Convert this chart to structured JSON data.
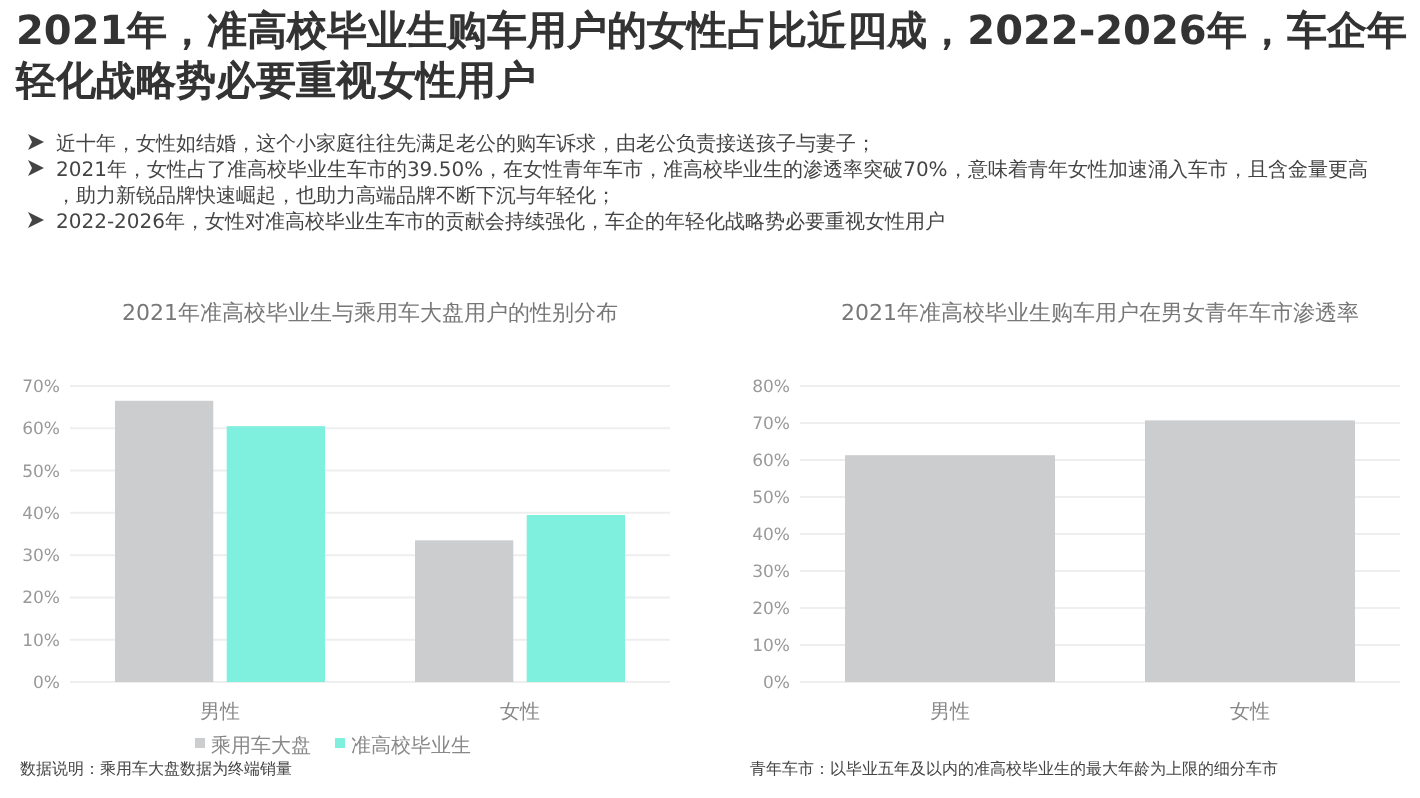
{
  "chart_data": [
    {
      "type": "other",
      "title": "2021年，准高校毕业生购车用户的女性占比近四成，2022-2026年，车企年轻化战略势必要重视女性用户",
      "annotations": [
        "近十年，女性如结婚，这个小家庭往往先满足老公的购车诉求，由老公负责接送孩子与妻子；",
        "2021年，女性占了准高校毕业生车市的39.50%，在女性青年车市，准高校毕业生的渗透率突破70%，意味着青年女性加速涌入车市，且含金量更高，助力新锐品牌快速崛起，也助力高端品牌不断下沉与年轻化；",
        "2022-2026年，女性对准高校毕业生车市的贡献会持续强化，车企的年轻化战略势必要重视女性用户"
      ]
    },
    {
      "type": "bar",
      "title": "2021年准高校毕业生与乘用车大盘用户的性别分布",
      "categories": [
        "男性",
        "女性"
      ],
      "series": [
        {
          "name": "乘用车大盘",
          "color": "#cbcdcf",
          "values": [
            66.5,
            33.5
          ]
        },
        {
          "name": "准高校毕业生",
          "color": "#80f0de",
          "values": [
            60.5,
            39.5
          ]
        }
      ],
      "ylim": [
        0,
        70
      ],
      "yticks": [
        {
          "value": 0,
          "label": "0%"
        },
        {
          "value": 10,
          "label": "10%"
        },
        {
          "value": 20,
          "label": "20%"
        },
        {
          "value": 30,
          "label": "30%"
        },
        {
          "value": 40,
          "label": "40%"
        },
        {
          "value": 50,
          "label": "50%"
        },
        {
          "value": 60,
          "label": "60%"
        },
        {
          "value": 70,
          "label": "70%"
        }
      ],
      "grid": "y",
      "legend": "bottom",
      "annotations": [
        "数据说明：乘用车大盘数据为终端销量"
      ]
    },
    {
      "type": "bar",
      "title": "2021年准高校毕业生购车用户在男女青年车市渗透率",
      "categories": [
        "男性",
        "女性"
      ],
      "series": [
        {
          "color": "#cbcdcf",
          "values": [
            61.3,
            70.7
          ]
        }
      ],
      "ylim": [
        0,
        80
      ],
      "yticks": [
        {
          "value": 0,
          "label": "0%"
        },
        {
          "value": 10,
          "label": "10%"
        },
        {
          "value": 20,
          "label": "20%"
        },
        {
          "value": 30,
          "label": "30%"
        },
        {
          "value": 40,
          "label": "40%"
        },
        {
          "value": 50,
          "label": "50%"
        },
        {
          "value": 60,
          "label": "60%"
        },
        {
          "value": 70,
          "label": "70%"
        },
        {
          "value": 80,
          "label": "80%"
        }
      ],
      "grid": "y",
      "annotations": [
        "青年车市：以毕业五年及以内的准高校毕业生的最大年龄为上限的细分车市"
      ]
    }
  ]
}
